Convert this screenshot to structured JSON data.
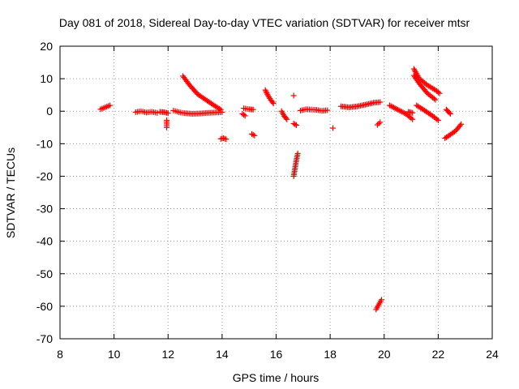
{
  "chart_data": {
    "type": "scatter",
    "title": "Day 081 of 2018, Sidereal Day-to-day VTEC variation (SDTVAR) for receiver mtsr",
    "xlabel": "GPS time / hours",
    "ylabel": "SDTVAR / TECUs",
    "xlim": [
      8,
      24
    ],
    "ylim": [
      -70,
      20
    ],
    "xticks": [
      8,
      10,
      12,
      14,
      16,
      18,
      20,
      22,
      24
    ],
    "yticks": [
      20,
      10,
      0,
      -10,
      -20,
      -30,
      -40,
      -50,
      -60,
      -70
    ],
    "grid": true,
    "marker": "+",
    "marker_color": "#ff0000",
    "segments": [
      {
        "x": [
          9.5,
          9.85
        ],
        "y": [
          0.6,
          1.8
        ]
      },
      {
        "x": [
          10.8,
          11.0,
          11.2,
          11.4,
          11.6
        ],
        "y": [
          -0.3,
          0.0,
          -0.4,
          -0.2,
          -0.5
        ]
      },
      {
        "x": [
          11.7,
          11.85,
          12.0
        ],
        "y": [
          -0.2,
          -0.3,
          -0.6
        ]
      },
      {
        "x": [
          11.95,
          11.95
        ],
        "y": [
          -2.8,
          -5.0
        ]
      },
      {
        "x": [
          12.2,
          12.4,
          12.6,
          12.9,
          13.2,
          13.5,
          13.8,
          14.0
        ],
        "y": [
          0.2,
          -0.3,
          -0.6,
          -0.8,
          -0.7,
          -0.5,
          -0.4,
          -0.3
        ]
      },
      {
        "x": [
          12.55,
          12.8,
          13.1,
          13.4,
          13.7,
          13.95
        ],
        "y": [
          10.8,
          8.0,
          5.2,
          3.5,
          1.8,
          0.5
        ]
      },
      {
        "x": [
          13.95,
          14.05,
          14.15
        ],
        "y": [
          -8.5,
          -8.3,
          -8.6
        ]
      },
      {
        "x": [
          14.75,
          14.85
        ],
        "y": [
          -0.8,
          -1.4
        ]
      },
      {
        "x": [
          14.8,
          15.0,
          15.15
        ],
        "y": [
          0.9,
          0.6,
          0.5
        ]
      },
      {
        "x": [
          15.1,
          15.2
        ],
        "y": [
          -7.0,
          -7.5
        ]
      },
      {
        "x": [
          15.6,
          15.7,
          15.8,
          15.9
        ],
        "y": [
          6.5,
          4.8,
          3.5,
          2.4
        ]
      },
      {
        "x": [
          16.2,
          16.3,
          16.4
        ],
        "y": [
          0.0,
          -1.5,
          -2.5
        ]
      },
      {
        "x": [
          16.65
        ],
        "y": [
          4.8
        ]
      },
      {
        "x": [
          16.65,
          16.75
        ],
        "y": [
          -3.8,
          -4.3
        ]
      },
      {
        "x": [
          16.65,
          16.7,
          16.75,
          16.8
        ],
        "y": [
          -20.0,
          -17.5,
          -15.0,
          -13.0
        ]
      },
      {
        "x": [
          16.9,
          17.1,
          17.3,
          17.5,
          17.7,
          17.9
        ],
        "y": [
          0.2,
          0.6,
          0.5,
          0.4,
          0.1,
          0.3
        ]
      },
      {
        "x": [
          18.1
        ],
        "y": [
          -5.2
        ]
      },
      {
        "x": [
          18.4,
          18.7,
          19.0,
          19.3,
          19.6,
          19.85
        ],
        "y": [
          1.5,
          1.2,
          1.5,
          2.0,
          2.6,
          2.8
        ]
      },
      {
        "x": [
          19.75,
          19.85
        ],
        "y": [
          -4.2,
          -3.4
        ]
      },
      {
        "x": [
          19.7,
          19.8,
          19.9
        ],
        "y": [
          -61.0,
          -59.5,
          -58.0
        ]
      },
      {
        "x": [
          20.2,
          20.5,
          20.8,
          21.05
        ],
        "y": [
          1.8,
          0.5,
          -0.8,
          -2.5
        ]
      },
      {
        "x": [
          20.9,
          21.05
        ],
        "y": [
          -0.2,
          -0.5
        ]
      },
      {
        "x": [
          21.1,
          21.3,
          21.6,
          21.9,
          22.05
        ],
        "y": [
          13.0,
          10.0,
          8.0,
          6.5,
          5.5
        ]
      },
      {
        "x": [
          21.1,
          21.3,
          21.6,
          21.9
        ],
        "y": [
          11.0,
          8.5,
          5.5,
          3.5
        ]
      },
      {
        "x": [
          21.2,
          21.5,
          21.8,
          22.0
        ],
        "y": [
          1.8,
          0.2,
          -1.5,
          -2.8
        ]
      },
      {
        "x": [
          22.3,
          22.45
        ],
        "y": [
          0.5,
          -0.8
        ]
      },
      {
        "x": [
          22.25,
          22.45,
          22.65,
          22.85
        ],
        "y": [
          -8.3,
          -7.2,
          -6.0,
          -4.0
        ]
      }
    ]
  }
}
